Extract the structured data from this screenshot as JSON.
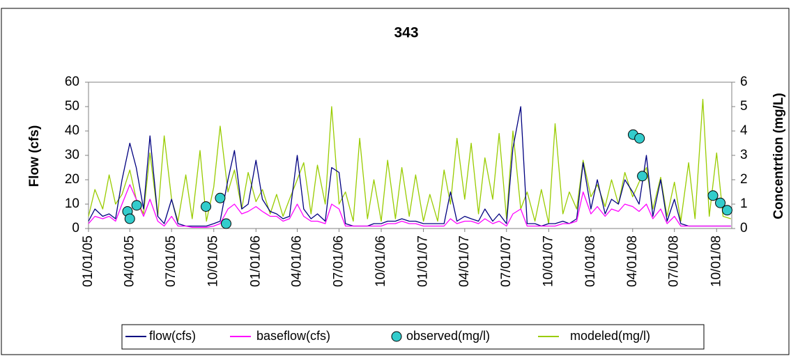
{
  "chart_data": {
    "type": "line",
    "title": "343",
    "y_label": "Flow (cfs)",
    "y2_label": "Concentrtion (mg/L)",
    "xlim": [
      "01/01/05",
      "11/03/08"
    ],
    "xticks": [
      "01/01/05",
      "04/01/05",
      "07/01/05",
      "10/01/05",
      "01/01/06",
      "04/01/06",
      "07/01/06",
      "10/01/06",
      "01/01/07",
      "04/01/07",
      "07/01/07",
      "10/01/07",
      "01/01/08",
      "04/01/08",
      "07/01/08",
      "10/01/08"
    ],
    "ylim": [
      0,
      60
    ],
    "yticks": [
      0,
      10,
      20,
      30,
      40,
      50,
      60
    ],
    "y2lim": [
      0,
      6
    ],
    "y2ticks": [
      0,
      1,
      2,
      3,
      4,
      5,
      6
    ],
    "legend": "bottom",
    "x": [
      "01/01/05",
      "01/15/05",
      "02/01/05",
      "02/15/05",
      "03/01/05",
      "03/15/05",
      "04/01/05",
      "04/15/05",
      "05/01/05",
      "05/15/05",
      "06/01/05",
      "06/15/05",
      "07/01/05",
      "07/15/05",
      "08/01/05",
      "08/15/05",
      "09/01/05",
      "09/15/05",
      "10/01/05",
      "10/15/05",
      "11/01/05",
      "11/15/05",
      "12/01/05",
      "12/15/05",
      "01/01/06",
      "01/15/06",
      "02/01/06",
      "02/15/06",
      "03/01/06",
      "03/15/06",
      "04/01/06",
      "04/15/06",
      "05/01/06",
      "05/15/06",
      "06/01/06",
      "06/15/06",
      "07/01/06",
      "07/15/06",
      "08/01/06",
      "08/15/06",
      "09/01/06",
      "09/15/06",
      "10/01/06",
      "10/15/06",
      "11/01/06",
      "11/15/06",
      "12/01/06",
      "12/15/06",
      "01/01/07",
      "01/15/07",
      "02/01/07",
      "02/15/07",
      "03/01/07",
      "03/15/07",
      "04/01/07",
      "04/15/07",
      "05/01/07",
      "05/15/07",
      "06/01/07",
      "06/15/07",
      "07/01/07",
      "07/15/07",
      "08/01/07",
      "08/15/07",
      "09/01/07",
      "09/15/07",
      "10/01/07",
      "10/15/07",
      "11/01/07",
      "11/15/07",
      "12/01/07",
      "12/15/07",
      "01/01/08",
      "01/15/08",
      "02/01/08",
      "02/15/08",
      "03/01/08",
      "03/15/08",
      "04/01/08",
      "04/15/08",
      "05/01/08",
      "05/15/08",
      "06/01/08",
      "06/15/08",
      "07/01/08",
      "07/15/08",
      "08/01/08",
      "08/15/08",
      "09/01/08",
      "09/15/08",
      "10/01/08",
      "10/15/08",
      "11/01/08"
    ],
    "series": [
      {
        "name": "flow(cfs)",
        "color": "#000080",
        "axis": "y",
        "kind": "line",
        "values": [
          3,
          8,
          5,
          6,
          4,
          20,
          35,
          25,
          8,
          38,
          5,
          2,
          12,
          2,
          1,
          1,
          1,
          1,
          2,
          3,
          20,
          32,
          8,
          10,
          28,
          12,
          7,
          6,
          4,
          5,
          30,
          8,
          4,
          6,
          3,
          25,
          23,
          2,
          1,
          1,
          1,
          2,
          2,
          3,
          3,
          4,
          3,
          3,
          2,
          2,
          2,
          2,
          15,
          3,
          5,
          4,
          3,
          8,
          3,
          6,
          2,
          33,
          50,
          2,
          2,
          1,
          2,
          2,
          3,
          2,
          4,
          27,
          8,
          20,
          6,
          12,
          10,
          20,
          15,
          10,
          30,
          5,
          20,
          3,
          12,
          2,
          1,
          1,
          1,
          1,
          1,
          1,
          1
        ]
      },
      {
        "name": "baseflow(cfs)",
        "color": "#ff00ff",
        "axis": "y",
        "kind": "line",
        "values": [
          2,
          5,
          4,
          5,
          3,
          10,
          18,
          12,
          5,
          12,
          3,
          1,
          5,
          1,
          1,
          0.5,
          0.5,
          0.5,
          1,
          2,
          8,
          10,
          6,
          7,
          9,
          7,
          5,
          5,
          3,
          4,
          10,
          5,
          3,
          3,
          2,
          10,
          8,
          1,
          1,
          1,
          1,
          1,
          1,
          2,
          2,
          3,
          2,
          2,
          1,
          1,
          1,
          1,
          4,
          2,
          3,
          3,
          2,
          4,
          2,
          3,
          1,
          6,
          8,
          1,
          1,
          1,
          1,
          1,
          2,
          2,
          3,
          15,
          6,
          9,
          5,
          8,
          7,
          10,
          9,
          7,
          10,
          4,
          8,
          2,
          5,
          1,
          1,
          1,
          1,
          1,
          1,
          1,
          1
        ]
      },
      {
        "name": "observed(mg/l)",
        "color": "#33cccc",
        "axis": "y2",
        "kind": "scatter",
        "x": [
          "03/27/05",
          "04/01/05",
          "04/16/05",
          "09/14/05",
          "10/15/05",
          "10/28/05",
          "04/02/08",
          "04/16/08",
          "04/22/08",
          "09/23/08",
          "10/09/08",
          "10/24/08"
        ],
        "values": [
          0.7,
          0.4,
          0.95,
          0.9,
          1.25,
          0.2,
          3.85,
          3.7,
          2.15,
          1.35,
          1.05,
          0.75
        ]
      },
      {
        "name": "modeled(mg/l)",
        "color": "#99cc00",
        "axis": "y2",
        "kind": "line",
        "values": [
          0.5,
          1.6,
          0.8,
          2.2,
          1.0,
          1.4,
          2.4,
          1.2,
          0.6,
          3.1,
          0.5,
          3.8,
          1.2,
          0.3,
          2.2,
          0.4,
          3.2,
          0.3,
          1.7,
          4.2,
          1.5,
          2.4,
          0.8,
          2.3,
          1.1,
          1.6,
          0.6,
          1.4,
          0.5,
          1.2,
          2.0,
          2.7,
          0.6,
          2.6,
          1.0,
          5.0,
          1.0,
          1.5,
          0.3,
          3.7,
          0.4,
          2.0,
          0.3,
          2.8,
          0.4,
          2.5,
          0.5,
          2.2,
          0.3,
          1.4,
          0.3,
          2.4,
          1.0,
          3.7,
          1.2,
          3.5,
          0.6,
          2.9,
          1.2,
          3.9,
          0.4,
          4.0,
          0.8,
          1.5,
          0.3,
          1.6,
          0.2,
          4.3,
          0.6,
          1.5,
          0.8,
          2.8,
          1.3,
          1.8,
          0.9,
          2.0,
          1.0,
          2.3,
          1.3,
          1.9,
          2.5,
          0.8,
          2.1,
          0.5,
          1.9,
          0.3,
          2.7,
          0.4,
          5.3,
          0.5,
          3.1,
          0.5,
          0.4
        ]
      }
    ]
  }
}
